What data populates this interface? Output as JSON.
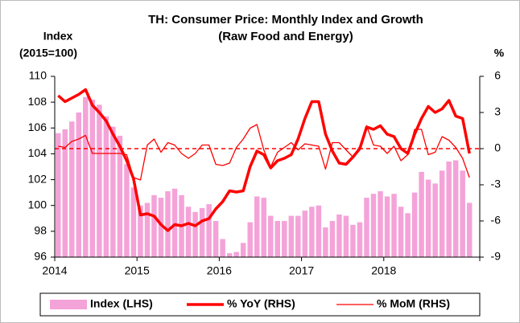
{
  "chart_data": {
    "type": "bar_line",
    "title": "TH: Consumer Price: Monthly Index and Growth",
    "subtitle": "(Raw Food and Energy)",
    "ylabel": [
      "Index",
      "(2015=100)"
    ],
    "y2label": "%",
    "categories": [
      "2014",
      null,
      null,
      null,
      null,
      null,
      null,
      null,
      null,
      null,
      null,
      null,
      "2015",
      null,
      null,
      null,
      null,
      null,
      null,
      null,
      null,
      null,
      null,
      null,
      "2016",
      null,
      null,
      null,
      null,
      null,
      null,
      null,
      null,
      null,
      null,
      null,
      "2017",
      null,
      null,
      null,
      null,
      null,
      null,
      null,
      null,
      null,
      null,
      null,
      "2018",
      null,
      null,
      null,
      null,
      null,
      null,
      null,
      null,
      null,
      null,
      null,
      null
    ],
    "series": [
      {
        "name": "Index (LHS)",
        "kind": "bar",
        "color": "#f4a3d8",
        "axis": "y",
        "values": [
          105.6,
          105.9,
          106.5,
          107.2,
          108.4,
          108.2,
          107.8,
          106.9,
          106.1,
          105.4,
          103.2,
          101.4,
          100.0,
          100.2,
          100.8,
          100.6,
          101.1,
          101.3,
          100.8,
          99.9,
          99.5,
          99.8,
          100.1,
          98.8,
          97.4,
          96.3,
          96.4,
          97.1,
          98.7,
          100.7,
          100.6,
          99.2,
          98.8,
          98.8,
          99.2,
          99.2,
          99.6,
          99.9,
          100.0,
          98.3,
          98.8,
          99.3,
          99.2,
          98.5,
          98.7,
          100.6,
          100.9,
          101.1,
          100.7,
          100.9,
          99.9,
          99.4,
          101.0,
          102.6,
          102.0,
          101.7,
          102.7,
          103.4,
          103.5,
          102.7,
          100.2
        ]
      },
      {
        "name": "% YoY (RHS)",
        "kind": "line",
        "color": "#ff0000",
        "width": 3.5,
        "axis": "y2",
        "values": [
          4.4,
          3.9,
          4.2,
          4.5,
          4.9,
          3.6,
          3.0,
          2.3,
          1.2,
          0.2,
          -1.0,
          -2.5,
          -5.5,
          -5.4,
          -5.6,
          -6.3,
          -6.8,
          -6.3,
          -6.4,
          -6.2,
          -6.4,
          -6.0,
          -5.8,
          -5.0,
          -4.4,
          -3.5,
          -3.6,
          -3.5,
          -1.5,
          -0.2,
          -0.5,
          -1.6,
          -1.0,
          -0.8,
          -0.5,
          0.8,
          2.5,
          3.9,
          3.9,
          1.2,
          -0.2,
          -1.2,
          -1.3,
          -0.7,
          0.0,
          1.8,
          1.6,
          1.9,
          1.2,
          1.0,
          0.0,
          -0.4,
          1.2,
          2.5,
          3.5,
          3.0,
          3.3,
          4.0,
          2.7,
          2.5,
          -0.4
        ]
      },
      {
        "name": "% MoM (RHS)",
        "kind": "line",
        "color": "#ff0000",
        "width": 1.3,
        "axis": "y2",
        "values": [
          0.2,
          0.1,
          0.6,
          0.8,
          1.1,
          -0.4,
          -0.4,
          -0.4,
          -0.4,
          -0.4,
          -0.5,
          -2.4,
          -2.6,
          0.3,
          0.8,
          -0.3,
          0.5,
          0.3,
          -0.4,
          -0.8,
          -0.4,
          0.3,
          0.3,
          -1.3,
          -1.4,
          -1.2,
          0.1,
          0.8,
          1.7,
          2.0,
          -0.1,
          -1.5,
          -0.3,
          0.1,
          0.5,
          -0.1,
          0.4,
          0.3,
          0.2,
          -1.7,
          0.5,
          0.5,
          -0.1,
          -0.7,
          0.2,
          1.9,
          0.3,
          0.2,
          -0.4,
          0.2,
          -1.0,
          -0.5,
          1.6,
          1.6,
          -0.5,
          -0.3,
          1.0,
          0.7,
          0.1,
          -0.8,
          -2.4
        ]
      }
    ],
    "ylim": [
      96,
      110
    ],
    "yticks": [
      96,
      98,
      100,
      102,
      104,
      106,
      108,
      110
    ],
    "y2lim": [
      -9,
      6
    ],
    "y2ticks": [
      -9,
      -6,
      -3,
      0,
      3,
      6
    ],
    "reference_line": {
      "axis": "y2",
      "value": 0,
      "color": "#ff0000",
      "dashed": true
    },
    "grid": false,
    "legend": "bottom"
  }
}
